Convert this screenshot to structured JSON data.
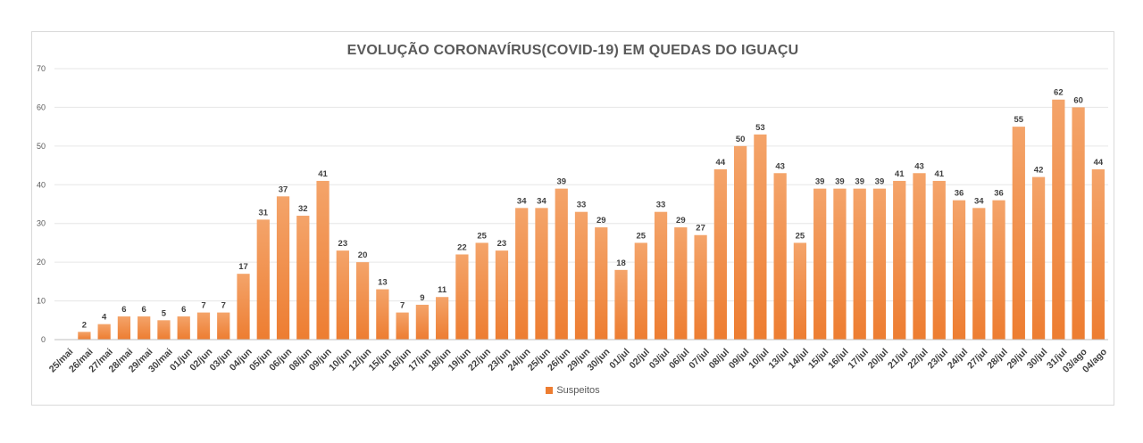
{
  "chart_data": {
    "type": "bar",
    "title": "EVOLUÇÃO CORONAVÍRUS(COVID-19) EM QUEDAS DO IGUAÇU",
    "categories": [
      "25/mai",
      "26/mai",
      "27/mai",
      "28/mai",
      "29/mai",
      "30/mai",
      "01/jun",
      "02/jun",
      "03/jun",
      "04/jun",
      "05/jun",
      "06/jun",
      "08/jun",
      "09/jun",
      "10/jun",
      "12/jun",
      "15/jun",
      "16/jun",
      "17/jun",
      "18/jun",
      "19/jun",
      "22/jun",
      "23/jun",
      "24/jun",
      "25/jun",
      "26/jun",
      "29/jun",
      "30/jun",
      "01/jul",
      "02/jul",
      "03/jul",
      "06/jul",
      "07/jul",
      "08/jul",
      "09/jul",
      "10/jul",
      "13/jul",
      "14/jul",
      "15/jul",
      "16/jul",
      "17/jul",
      "20/jul",
      "21/jul",
      "22/jul",
      "23/jul",
      "24/jul",
      "27/jul",
      "28/jul",
      "29/jul",
      "30/jul",
      "31/jul",
      "03/ago",
      "04/ago"
    ],
    "series": [
      {
        "name": "Suspeitos",
        "values": [
          null,
          2,
          4,
          6,
          6,
          5,
          6,
          7,
          7,
          17,
          31,
          37,
          32,
          41,
          23,
          20,
          13,
          7,
          9,
          11,
          22,
          25,
          23,
          34,
          34,
          39,
          33,
          29,
          18,
          25,
          33,
          29,
          27,
          44,
          50,
          53,
          43,
          25,
          39,
          39,
          39,
          39,
          41,
          43,
          41,
          36,
          34,
          36,
          55,
          42,
          62,
          60,
          44
        ]
      }
    ],
    "xlabel": "",
    "ylabel": "",
    "ylim": [
      0,
      70
    ],
    "yticks": [
      0,
      10,
      20,
      30,
      40,
      50,
      60,
      70
    ],
    "grid": true,
    "legend": "bottom",
    "bar_color": "#ED7D31",
    "bar_color_light": "#F4A46A"
  }
}
